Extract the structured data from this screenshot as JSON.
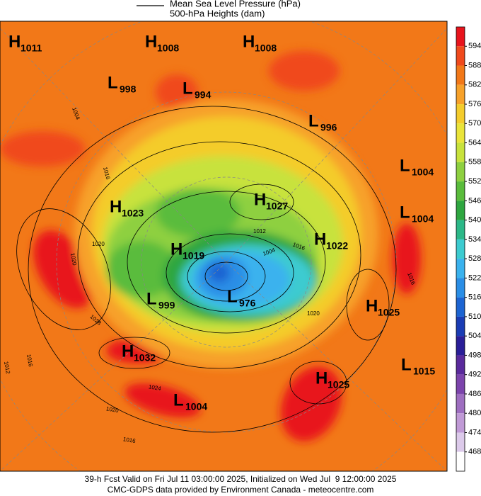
{
  "legend": [
    "Mean Sea Level Pressure (hPa)",
    "500-hPa Heights (dam)"
  ],
  "colorbar": {
    "labels": [
      "594",
      "588",
      "582",
      "576",
      "570",
      "564",
      "558",
      "552",
      "546",
      "540",
      "534",
      "528",
      "522",
      "516",
      "510",
      "504",
      "498",
      "492",
      "486",
      "480",
      "474",
      "468"
    ],
    "colors": [
      "#e8141c",
      "#f04a1c",
      "#f27818",
      "#f7a12a",
      "#f4cc2c",
      "#eae43a",
      "#c8e23c",
      "#8ed040",
      "#5abc3c",
      "#2ea640",
      "#2cb888",
      "#3ccbd0",
      "#3ab2ee",
      "#2a8ee6",
      "#1c64d2",
      "#1a3cb4",
      "#2a1e98",
      "#5a2a9c",
      "#7c44ac",
      "#9e6ec0",
      "#c09ad6",
      "#dccaea",
      "#ffffff"
    ]
  },
  "centers": [
    {
      "type": "H",
      "value": "1011"
    },
    {
      "type": "H",
      "value": "1008"
    },
    {
      "type": "H",
      "value": "1008"
    },
    {
      "type": "L",
      "value": "998"
    },
    {
      "type": "L",
      "value": "994"
    },
    {
      "type": "L",
      "value": "996"
    },
    {
      "type": "L",
      "value": "1004"
    },
    {
      "type": "H",
      "value": "1023"
    },
    {
      "type": "H",
      "value": "1027"
    },
    {
      "type": "L",
      "value": "1004"
    },
    {
      "type": "H",
      "value": "1022"
    },
    {
      "type": "H",
      "value": "1019"
    },
    {
      "type": "L",
      "value": "999"
    },
    {
      "type": "L",
      "value": "976"
    },
    {
      "type": "H",
      "value": "1025"
    },
    {
      "type": "H",
      "value": "1032"
    },
    {
      "type": "H",
      "value": "1025"
    },
    {
      "type": "L",
      "value": "1015"
    },
    {
      "type": "L",
      "value": "1004"
    }
  ],
  "contour_labels": [
    "1004",
    "1016",
    "1020",
    "1020",
    "1028",
    "1016",
    "1012",
    "1024",
    "1020",
    "1016",
    "1012",
    "1004",
    "1016",
    "1020",
    "1016"
  ],
  "footer": [
    "39-h Fcst Valid on Fri Jul 11 03:00:00 2025, Initialized on Wed Jul  9 12:00:00 2025",
    "CMC-GDPS data provided by Environment Canada - meteocentre.com"
  ]
}
